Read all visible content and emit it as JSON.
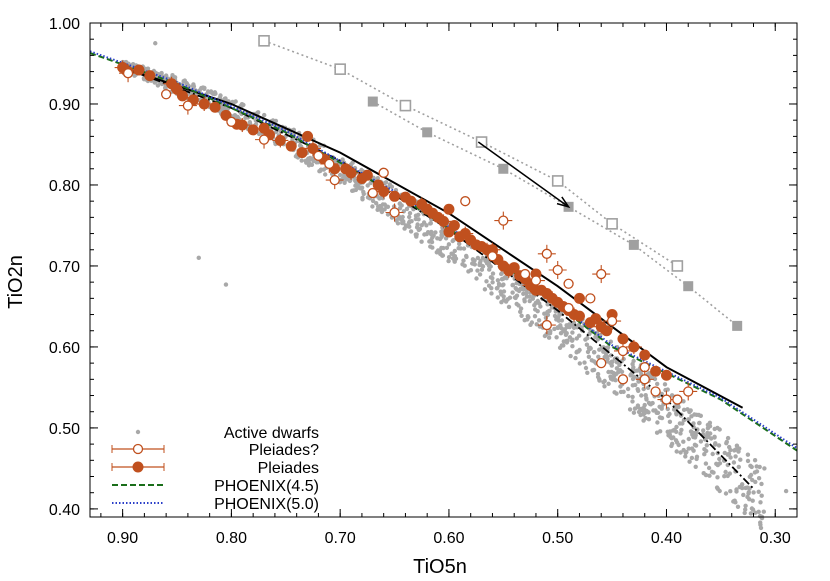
{
  "chart_data": {
    "type": "scatter",
    "xlabel": "TiO5n",
    "ylabel": "TiO2n",
    "xlim": [
      0.93,
      0.28
    ],
    "ylim": [
      0.39,
      1.0
    ],
    "x_reversed": true,
    "xticks": [
      "0.90",
      "0.80",
      "0.70",
      "0.60",
      "0.50",
      "0.40",
      "0.30"
    ],
    "xtick_values": [
      0.9,
      0.8,
      0.7,
      0.6,
      0.5,
      0.4,
      0.3
    ],
    "yticks": [
      "0.40",
      "0.50",
      "0.60",
      "0.70",
      "0.80",
      "0.90",
      "1.00"
    ],
    "ytick_values": [
      0.4,
      0.5,
      0.6,
      0.7,
      0.8,
      0.9,
      1.0
    ],
    "grid": false,
    "legend_position": "bottom-left",
    "colors": {
      "gray": "#a8a8a8",
      "orange": "#c0501e",
      "green": "#1a6e1a",
      "blue": "#2a3ec8",
      "black": "#000000",
      "model_gray": "#a0a0a0"
    },
    "legend": [
      "Active dwarfs",
      "Pleiades?",
      "Pleiades",
      "PHOENIX(4.5)",
      "PHOENIX(5.0)"
    ],
    "series": [
      {
        "name": "Active dwarfs",
        "marker": "dot",
        "outliers": [
          [
            0.83,
            0.71
          ],
          [
            0.805,
            0.677
          ],
          [
            0.29,
            0.422
          ],
          [
            0.87,
            0.975
          ]
        ]
      },
      {
        "name": "Pleiades?",
        "marker": "open-circle",
        "points": [
          [
            0.895,
            0.938
          ],
          [
            0.86,
            0.912
          ],
          [
            0.84,
            0.898
          ],
          [
            0.8,
            0.878
          ],
          [
            0.77,
            0.856
          ],
          [
            0.72,
            0.836
          ],
          [
            0.71,
            0.826
          ],
          [
            0.66,
            0.815
          ],
          [
            0.705,
            0.806
          ],
          [
            0.67,
            0.79
          ],
          [
            0.65,
            0.766
          ],
          [
            0.585,
            0.78
          ],
          [
            0.55,
            0.756
          ],
          [
            0.56,
            0.712
          ],
          [
            0.51,
            0.715
          ],
          [
            0.53,
            0.69
          ],
          [
            0.52,
            0.682
          ],
          [
            0.49,
            0.678
          ],
          [
            0.46,
            0.69
          ],
          [
            0.47,
            0.66
          ],
          [
            0.51,
            0.627
          ],
          [
            0.49,
            0.648
          ],
          [
            0.45,
            0.632
          ],
          [
            0.46,
            0.58
          ],
          [
            0.44,
            0.595
          ],
          [
            0.42,
            0.575
          ],
          [
            0.42,
            0.56
          ],
          [
            0.41,
            0.545
          ],
          [
            0.4,
            0.535
          ],
          [
            0.39,
            0.535
          ],
          [
            0.38,
            0.545
          ],
          [
            0.44,
            0.56
          ],
          [
            0.5,
            0.695
          ]
        ]
      },
      {
        "name": "Pleiades",
        "marker": "filled-circle",
        "points": [
          [
            0.9,
            0.945
          ],
          [
            0.895,
            0.94
          ],
          [
            0.885,
            0.942
          ],
          [
            0.875,
            0.935
          ],
          [
            0.855,
            0.925
          ],
          [
            0.85,
            0.918
          ],
          [
            0.845,
            0.91
          ],
          [
            0.835,
            0.905
          ],
          [
            0.825,
            0.9
          ],
          [
            0.815,
            0.896
          ],
          [
            0.805,
            0.886
          ],
          [
            0.795,
            0.875
          ],
          [
            0.79,
            0.874
          ],
          [
            0.78,
            0.868
          ],
          [
            0.77,
            0.87
          ],
          [
            0.765,
            0.862
          ],
          [
            0.755,
            0.855
          ],
          [
            0.745,
            0.848
          ],
          [
            0.735,
            0.84
          ],
          [
            0.73,
            0.86
          ],
          [
            0.725,
            0.845
          ],
          [
            0.715,
            0.832
          ],
          [
            0.705,
            0.82
          ],
          [
            0.695,
            0.82
          ],
          [
            0.69,
            0.815
          ],
          [
            0.68,
            0.808
          ],
          [
            0.675,
            0.812
          ],
          [
            0.665,
            0.8
          ],
          [
            0.66,
            0.792
          ],
          [
            0.65,
            0.786
          ],
          [
            0.64,
            0.785
          ],
          [
            0.635,
            0.78
          ],
          [
            0.625,
            0.776
          ],
          [
            0.62,
            0.77
          ],
          [
            0.615,
            0.765
          ],
          [
            0.61,
            0.76
          ],
          [
            0.605,
            0.755
          ],
          [
            0.6,
            0.742
          ],
          [
            0.595,
            0.75
          ],
          [
            0.59,
            0.736
          ],
          [
            0.585,
            0.74
          ],
          [
            0.58,
            0.732
          ],
          [
            0.575,
            0.726
          ],
          [
            0.57,
            0.724
          ],
          [
            0.565,
            0.72
          ],
          [
            0.56,
            0.718
          ],
          [
            0.555,
            0.708
          ],
          [
            0.55,
            0.7
          ],
          [
            0.545,
            0.694
          ],
          [
            0.54,
            0.698
          ],
          [
            0.535,
            0.688
          ],
          [
            0.53,
            0.684
          ],
          [
            0.525,
            0.676
          ],
          [
            0.52,
            0.67
          ],
          [
            0.515,
            0.67
          ],
          [
            0.51,
            0.666
          ],
          [
            0.505,
            0.66
          ],
          [
            0.5,
            0.655
          ],
          [
            0.495,
            0.65
          ],
          [
            0.49,
            0.645
          ],
          [
            0.485,
            0.64
          ],
          [
            0.48,
            0.638
          ],
          [
            0.47,
            0.63
          ],
          [
            0.465,
            0.635
          ],
          [
            0.46,
            0.625
          ],
          [
            0.455,
            0.62
          ],
          [
            0.45,
            0.64
          ],
          [
            0.44,
            0.61
          ],
          [
            0.43,
            0.6
          ],
          [
            0.42,
            0.59
          ],
          [
            0.41,
            0.57
          ],
          [
            0.4,
            0.565
          ],
          [
            0.56,
            0.72
          ],
          [
            0.52,
            0.69
          ],
          [
            0.48,
            0.66
          ],
          [
            0.6,
            0.77
          ]
        ]
      },
      {
        "name": "PHOENIX(4.5)",
        "style": "dashed",
        "points": [
          [
            0.93,
            0.963
          ],
          [
            0.85,
            0.925
          ],
          [
            0.75,
            0.865
          ],
          [
            0.65,
            0.79
          ],
          [
            0.55,
            0.702
          ],
          [
            0.45,
            0.6
          ],
          [
            0.35,
            0.535
          ],
          [
            0.28,
            0.472
          ]
        ]
      },
      {
        "name": "PHOENIX(5.0)",
        "style": "dotted",
        "points": [
          [
            0.93,
            0.965
          ],
          [
            0.85,
            0.927
          ],
          [
            0.75,
            0.867
          ],
          [
            0.65,
            0.792
          ],
          [
            0.55,
            0.704
          ],
          [
            0.45,
            0.602
          ],
          [
            0.35,
            0.537
          ],
          [
            0.28,
            0.475
          ]
        ]
      },
      {
        "marker": "solid-line",
        "points": [
          [
            0.9,
            0.945
          ],
          [
            0.8,
            0.9
          ],
          [
            0.7,
            0.84
          ],
          [
            0.6,
            0.765
          ],
          [
            0.5,
            0.675
          ],
          [
            0.4,
            0.575
          ],
          [
            0.33,
            0.525
          ]
        ]
      },
      {
        "marker": "dash-dot-line",
        "points": [
          [
            0.9,
            0.945
          ],
          [
            0.8,
            0.895
          ],
          [
            0.7,
            0.83
          ],
          [
            0.6,
            0.745
          ],
          [
            0.5,
            0.645
          ],
          [
            0.4,
            0.535
          ],
          [
            0.32,
            0.425
          ]
        ]
      },
      {
        "marker": "open-square-dotted",
        "points": [
          [
            0.77,
            0.978
          ],
          [
            0.7,
            0.943
          ],
          [
            0.64,
            0.898
          ],
          [
            0.57,
            0.853
          ],
          [
            0.5,
            0.805
          ],
          [
            0.45,
            0.752
          ],
          [
            0.39,
            0.7
          ]
        ]
      },
      {
        "marker": "filled-square-dotted",
        "points": [
          [
            0.67,
            0.903
          ],
          [
            0.62,
            0.865
          ],
          [
            0.55,
            0.82
          ],
          [
            0.49,
            0.773
          ],
          [
            0.43,
            0.726
          ],
          [
            0.38,
            0.675
          ],
          [
            0.335,
            0.626
          ]
        ]
      }
    ],
    "arrow": {
      "from": [
        0.573,
        0.853
      ],
      "to": [
        0.49,
        0.773
      ]
    }
  }
}
